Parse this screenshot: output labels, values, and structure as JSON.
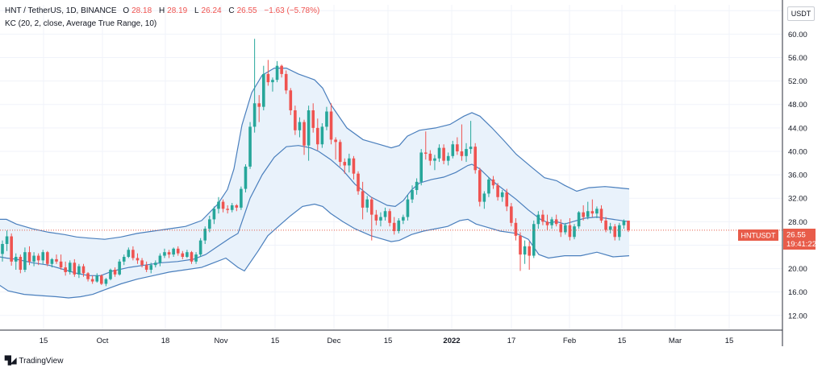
{
  "legend": {
    "symbol": "HNT / TetherUS, 1D, BINANCE",
    "o_label": "O",
    "o_value": "28.18",
    "h_label": "H",
    "h_value": "28.19",
    "l_label": "L",
    "l_value": "26.24",
    "c_label": "C",
    "c_value": "26.55",
    "change": "−1.63 (−5.78%)",
    "indicator": "KC (20, 2, close, Average True Range, 10)"
  },
  "currency_button": "USDT",
  "price_badge": {
    "ticker": "HNTUSDT",
    "price": "26.55",
    "countdown": "19:41:22"
  },
  "brand": "TradingView",
  "colors": {
    "up": "#26a69a",
    "down": "#ef5350",
    "band_line": "#4a7fbd",
    "band_fill": "#e9f2fb",
    "last_price": "#e85c4a",
    "grid": "#f0f3fa"
  },
  "chart_data": {
    "type": "candlestick",
    "y_ticks": [
      "12.00",
      "16.00",
      "20.00",
      "24.00",
      "28.00",
      "32.00",
      "36.00",
      "40.00",
      "44.00",
      "48.00",
      "52.00",
      "56.00",
      "60.00",
      "64.00"
    ],
    "ylim": [
      9.5,
      65
    ],
    "x_ticks": [
      "15",
      "Oct",
      "18",
      "Nov",
      "15",
      "Dec",
      "15",
      "2022",
      "17",
      "Feb",
      "15",
      "Mar",
      "15"
    ],
    "x_tick_bold": [
      "2022"
    ],
    "last_price": 26.55,
    "ohlc": [
      [
        22.5,
        24.8,
        21.2,
        24.2
      ],
      [
        24.2,
        26.5,
        23,
        25.5
      ],
      [
        25.5,
        26,
        20.5,
        21.2
      ],
      [
        21.2,
        22.6,
        19.8,
        22
      ],
      [
        22,
        22.4,
        19.2,
        19.8
      ],
      [
        19.8,
        23.6,
        19.4,
        22.8
      ],
      [
        22.8,
        23.8,
        20.6,
        21.2
      ],
      [
        21.2,
        22.8,
        20.4,
        22.2
      ],
      [
        22.2,
        22.6,
        20.6,
        21.4
      ],
      [
        21.4,
        23.2,
        20.8,
        22.8
      ],
      [
        22.8,
        23,
        20.4,
        20.8
      ],
      [
        20.8,
        21.8,
        20.2,
        21.6
      ],
      [
        21.6,
        22.4,
        20.8,
        21.2
      ],
      [
        21.2,
        22.4,
        19.8,
        20.2
      ],
      [
        20.2,
        21.2,
        18.8,
        19.4
      ],
      [
        19.4,
        21.4,
        19,
        21
      ],
      [
        21,
        21.6,
        18.6,
        19
      ],
      [
        19,
        20.8,
        18.4,
        20.4
      ],
      [
        20.4,
        20.8,
        18.6,
        19.2
      ],
      [
        19.2,
        19.4,
        17.8,
        18.2
      ],
      [
        18.2,
        18.8,
        17.4,
        17.8
      ],
      [
        17.8,
        19.2,
        17.6,
        18.8
      ],
      [
        18.8,
        19,
        17.2,
        17.4
      ],
      [
        17.4,
        18.4,
        17,
        18.2
      ],
      [
        18.2,
        20,
        18,
        19.8
      ],
      [
        19.8,
        20.2,
        18.6,
        19
      ],
      [
        19,
        21.6,
        18.8,
        21.2
      ],
      [
        21.2,
        22.4,
        20.6,
        22
      ],
      [
        22,
        23.6,
        21.8,
        23.2
      ],
      [
        23.2,
        23.8,
        21.4,
        21.8
      ],
      [
        21.8,
        22.6,
        20.8,
        21.4
      ],
      [
        21.4,
        21.8,
        20.2,
        20.6
      ],
      [
        20.6,
        21.2,
        19.4,
        19.8
      ],
      [
        19.8,
        21,
        19.2,
        20.6
      ],
      [
        20.6,
        21.4,
        20.2,
        21
      ],
      [
        21,
        22.6,
        20.4,
        22.2
      ],
      [
        22.2,
        23.4,
        21.8,
        22.8
      ],
      [
        22.8,
        23.2,
        21.8,
        22.4
      ],
      [
        22.4,
        23.6,
        22,
        23.4
      ],
      [
        23.4,
        23.8,
        22.2,
        22.6
      ],
      [
        22.6,
        23,
        21.6,
        22
      ],
      [
        22,
        23.2,
        21.8,
        22.8
      ],
      [
        22.8,
        23,
        20.8,
        21.2
      ],
      [
        21.2,
        22.8,
        20.8,
        22.4
      ],
      [
        22.4,
        25.2,
        22,
        24.8
      ],
      [
        24.8,
        27.2,
        24.2,
        26.8
      ],
      [
        26.8,
        29,
        26.2,
        28.4
      ],
      [
        28.4,
        30.6,
        27.6,
        30.2
      ],
      [
        30.2,
        32.2,
        29.4,
        31.4
      ],
      [
        31.4,
        31.8,
        29.6,
        30.2
      ],
      [
        30.2,
        30.8,
        29.4,
        30
      ],
      [
        30,
        31.2,
        29.6,
        30.8
      ],
      [
        30.8,
        31,
        29.8,
        30.4
      ],
      [
        30.4,
        34,
        30,
        33.6
      ],
      [
        33.6,
        37.8,
        33,
        37.4
      ],
      [
        37.4,
        45,
        37,
        44.2
      ],
      [
        44.2,
        59.2,
        43.2,
        48.2
      ],
      [
        48.2,
        49.6,
        45,
        47.6
      ],
      [
        47.6,
        54.6,
        47,
        53.2
      ],
      [
        53.2,
        55.6,
        51.2,
        51.8
      ],
      [
        51.8,
        52.6,
        50.2,
        52.2
      ],
      [
        52.2,
        55.4,
        51.8,
        54.6
      ],
      [
        54.6,
        54.8,
        52.6,
        53.2
      ],
      [
        53.2,
        53.8,
        49.8,
        50.4
      ],
      [
        50.4,
        50.8,
        46.2,
        47
      ],
      [
        47,
        47.8,
        42.8,
        43.6
      ],
      [
        43.6,
        45.8,
        42.4,
        45
      ],
      [
        45,
        45.4,
        39.4,
        41
      ],
      [
        41,
        47.8,
        38.4,
        47
      ],
      [
        47,
        48.2,
        43.2,
        44
      ],
      [
        44,
        45.6,
        40.2,
        41.2
      ],
      [
        41.2,
        44.8,
        40.6,
        44.2
      ],
      [
        44.2,
        47.6,
        43.6,
        46.8
      ],
      [
        46.8,
        48.2,
        41.2,
        42
      ],
      [
        42,
        42.4,
        38.6,
        41.6
      ],
      [
        41.6,
        42,
        37.4,
        38.2
      ],
      [
        38.2,
        38.8,
        36.2,
        37.6
      ],
      [
        37.6,
        39.6,
        36.4,
        38.8
      ],
      [
        38.8,
        39.2,
        35.2,
        36.2
      ],
      [
        36.2,
        36.6,
        32.6,
        33.2
      ],
      [
        33.2,
        34.8,
        28.4,
        30.4
      ],
      [
        30.4,
        32.4,
        29.6,
        31.8
      ],
      [
        31.8,
        32.2,
        24.8,
        29.2
      ],
      [
        29.2,
        30,
        27.4,
        28.2
      ],
      [
        28.2,
        29.6,
        27.2,
        28.8
      ],
      [
        28.8,
        30.4,
        28.2,
        29.8
      ],
      [
        29.8,
        30.2,
        27.2,
        27.8
      ],
      [
        27.8,
        28.8,
        25.8,
        26.4
      ],
      [
        26.4,
        28.6,
        26,
        28.2
      ],
      [
        28.2,
        29.2,
        27.6,
        28.8
      ],
      [
        28.8,
        32.6,
        28.2,
        31.8
      ],
      [
        31.8,
        34.2,
        31.2,
        33.4
      ],
      [
        33.4,
        35.4,
        32.6,
        34.8
      ],
      [
        34.8,
        40.4,
        34.2,
        39.8
      ],
      [
        39.8,
        43.4,
        38.6,
        39.6
      ],
      [
        39.6,
        40.2,
        37.6,
        38.4
      ],
      [
        38.4,
        39.4,
        36.8,
        38.8
      ],
      [
        38.8,
        41.2,
        38.2,
        40.6
      ],
      [
        40.6,
        41.2,
        37.8,
        38.4
      ],
      [
        38.4,
        39.8,
        37.6,
        39.2
      ],
      [
        39.2,
        41.8,
        38.8,
        41.2
      ],
      [
        41.2,
        42.4,
        39.4,
        40
      ],
      [
        40,
        44.6,
        38.4,
        39.2
      ],
      [
        39.2,
        41.4,
        38.2,
        40.4
      ],
      [
        40.4,
        45.2,
        39.6,
        40.8
      ],
      [
        40.8,
        41.4,
        36.2,
        36.8
      ],
      [
        36.8,
        37.2,
        30.6,
        31.4
      ],
      [
        31.4,
        33.2,
        30.2,
        32.8
      ],
      [
        32.8,
        35.6,
        32.2,
        35.2
      ],
      [
        35.2,
        35.8,
        33.6,
        34.2
      ],
      [
        34.2,
        34.6,
        31.6,
        32.2
      ],
      [
        32.2,
        33.4,
        31.4,
        33
      ],
      [
        33,
        33.6,
        29.8,
        30.6
      ],
      [
        30.6,
        31.2,
        27.2,
        27.8
      ],
      [
        27.8,
        28.6,
        24.8,
        25.6
      ],
      [
        25.6,
        26.2,
        19.6,
        22.4
      ],
      [
        22.4,
        24.8,
        20.8,
        23.8
      ],
      [
        23.8,
        24.6,
        19.8,
        22.2
      ],
      [
        22.2,
        28.2,
        21.8,
        27.6
      ],
      [
        27.6,
        29.8,
        26.8,
        29.2
      ],
      [
        29.2,
        30,
        27.4,
        28
      ],
      [
        28,
        29.2,
        26.6,
        27.4
      ],
      [
        27.4,
        28.8,
        26.8,
        28.4
      ],
      [
        28.4,
        29.2,
        27.2,
        27.6
      ],
      [
        27.6,
        28.4,
        25.4,
        26.2
      ],
      [
        26.2,
        27.8,
        25.8,
        27.4
      ],
      [
        27.4,
        28.6,
        24.8,
        25.4
      ],
      [
        25.4,
        27.6,
        25,
        27.2
      ],
      [
        27.2,
        29.8,
        26.8,
        29.6
      ],
      [
        29.6,
        30.8,
        28.2,
        28.8
      ],
      [
        28.8,
        31.4,
        28.4,
        29.8
      ],
      [
        29.8,
        31.8,
        28.8,
        29.4
      ],
      [
        29.4,
        30.6,
        28.6,
        30.2
      ],
      [
        30.2,
        30.8,
        27.8,
        28.2
      ],
      [
        28.2,
        28.8,
        26.2,
        26.6
      ],
      [
        26.6,
        27.8,
        26,
        27.2
      ],
      [
        27.2,
        27.6,
        24.8,
        25.4
      ],
      [
        25.4,
        27.8,
        24.8,
        27.4
      ],
      [
        27.4,
        28.4,
        26.8,
        28.18
      ],
      [
        28.18,
        28.19,
        26.24,
        26.55
      ]
    ],
    "kc_upper": [
      [
        -1,
        28.4
      ],
      [
        8,
        28.4
      ],
      [
        20,
        27.6
      ],
      [
        40,
        26.8
      ],
      [
        60,
        26.2
      ],
      [
        80,
        25.8
      ],
      [
        95,
        25.4
      ],
      [
        110,
        25.2
      ],
      [
        130,
        25
      ],
      [
        150,
        25.4
      ],
      [
        170,
        26
      ],
      [
        190,
        26.4
      ],
      [
        210,
        26.8
      ],
      [
        230,
        27.2
      ],
      [
        250,
        28.2
      ],
      [
        270,
        31
      ],
      [
        282,
        33.5
      ],
      [
        290,
        37
      ],
      [
        300,
        44.5
      ],
      [
        312,
        50
      ],
      [
        325,
        53
      ],
      [
        340,
        54.2
      ],
      [
        355,
        54.2
      ],
      [
        370,
        53.2
      ],
      [
        390,
        52.2
      ],
      [
        400,
        50.8
      ],
      [
        410,
        48
      ],
      [
        430,
        44
      ],
      [
        450,
        42
      ],
      [
        470,
        41.2
      ],
      [
        485,
        40.6
      ],
      [
        495,
        41
      ],
      [
        505,
        42.6
      ],
      [
        520,
        43.6
      ],
      [
        540,
        44
      ],
      [
        558,
        44.6
      ],
      [
        575,
        46
      ],
      [
        585,
        46.6
      ],
      [
        595,
        46
      ],
      [
        610,
        44
      ],
      [
        625,
        41.8
      ],
      [
        640,
        39.5
      ],
      [
        660,
        37.2
      ],
      [
        675,
        35.5
      ],
      [
        690,
        35
      ],
      [
        700,
        34.2
      ],
      [
        715,
        33.2
      ],
      [
        730,
        33.8
      ],
      [
        750,
        34
      ],
      [
        765,
        33.8
      ],
      [
        780,
        33.6
      ]
    ],
    "kc_middle": [
      [
        -1,
        22
      ],
      [
        8,
        21.8
      ],
      [
        20,
        21.6
      ],
      [
        40,
        21
      ],
      [
        60,
        20.6
      ],
      [
        80,
        19.8
      ],
      [
        95,
        19.2
      ],
      [
        110,
        18.8
      ],
      [
        125,
        18.8
      ],
      [
        140,
        19.6
      ],
      [
        160,
        20.2
      ],
      [
        180,
        20.6
      ],
      [
        200,
        21
      ],
      [
        220,
        21.2
      ],
      [
        240,
        21.6
      ],
      [
        255,
        22.4
      ],
      [
        270,
        23.8
      ],
      [
        285,
        25.2
      ],
      [
        295,
        26
      ],
      [
        300,
        28
      ],
      [
        310,
        32
      ],
      [
        325,
        36
      ],
      [
        340,
        39
      ],
      [
        355,
        40.8
      ],
      [
        370,
        41
      ],
      [
        385,
        40.6
      ],
      [
        395,
        40
      ],
      [
        410,
        38.6
      ],
      [
        425,
        36.8
      ],
      [
        440,
        34.4
      ],
      [
        460,
        32.2
      ],
      [
        480,
        30.8
      ],
      [
        490,
        30.6
      ],
      [
        500,
        31.6
      ],
      [
        510,
        33.4
      ],
      [
        520,
        34.6
      ],
      [
        535,
        35.2
      ],
      [
        550,
        35.6
      ],
      [
        565,
        36.4
      ],
      [
        580,
        37.6
      ],
      [
        585,
        37.8
      ],
      [
        595,
        37
      ],
      [
        610,
        35
      ],
      [
        625,
        33.4
      ],
      [
        640,
        31.8
      ],
      [
        655,
        30
      ],
      [
        670,
        28.4
      ],
      [
        680,
        27.8
      ],
      [
        690,
        28
      ],
      [
        700,
        27.6
      ],
      [
        710,
        28
      ],
      [
        725,
        28.6
      ],
      [
        740,
        28.8
      ],
      [
        760,
        28.4
      ],
      [
        780,
        28
      ]
    ],
    "kc_lower": [
      [
        -1,
        17.2
      ],
      [
        10,
        16.2
      ],
      [
        30,
        15.6
      ],
      [
        50,
        15.4
      ],
      [
        70,
        15.2
      ],
      [
        85,
        15
      ],
      [
        100,
        15.2
      ],
      [
        115,
        15.6
      ],
      [
        130,
        16.4
      ],
      [
        150,
        17.4
      ],
      [
        170,
        18.2
      ],
      [
        190,
        18.8
      ],
      [
        210,
        19.4
      ],
      [
        230,
        19.8
      ],
      [
        250,
        20.2
      ],
      [
        265,
        21
      ],
      [
        280,
        21.8
      ],
      [
        295,
        20.2
      ],
      [
        303,
        19.6
      ],
      [
        310,
        21
      ],
      [
        320,
        23
      ],
      [
        332,
        25.6
      ],
      [
        345,
        27.2
      ],
      [
        360,
        29
      ],
      [
        375,
        30.6
      ],
      [
        390,
        31
      ],
      [
        400,
        30.6
      ],
      [
        410,
        29.4
      ],
      [
        425,
        28
      ],
      [
        440,
        26.8
      ],
      [
        460,
        25.6
      ],
      [
        475,
        25
      ],
      [
        485,
        24.6
      ],
      [
        495,
        24.8
      ],
      [
        510,
        25.8
      ],
      [
        525,
        26.4
      ],
      [
        540,
        26.8
      ],
      [
        555,
        27.2
      ],
      [
        570,
        28.2
      ],
      [
        580,
        28.4
      ],
      [
        590,
        27.6
      ],
      [
        605,
        27
      ],
      [
        620,
        26.4
      ],
      [
        640,
        26
      ],
      [
        655,
        25
      ],
      [
        668,
        22.4
      ],
      [
        680,
        21.8
      ],
      [
        700,
        22.2
      ],
      [
        720,
        22.2
      ],
      [
        740,
        22.8
      ],
      [
        760,
        22
      ],
      [
        780,
        22.2
      ]
    ]
  }
}
